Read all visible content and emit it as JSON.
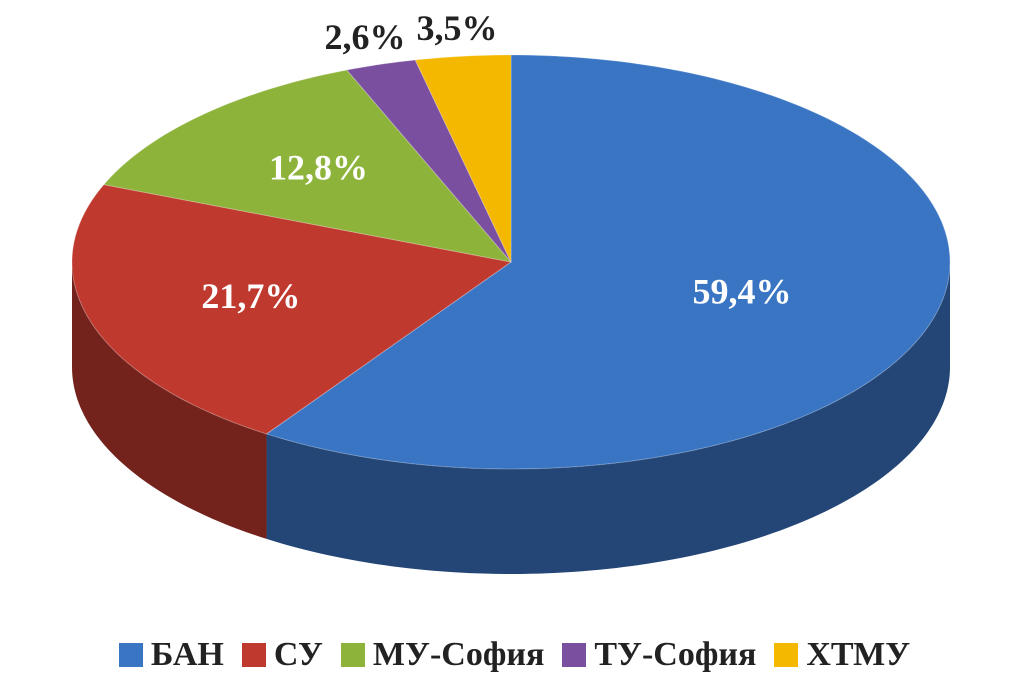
{
  "chart_data": {
    "type": "pie",
    "categories": [
      "БАН",
      "СУ",
      "МУ-София",
      "ТУ-София",
      "ХТМУ"
    ],
    "values": [
      59.4,
      21.7,
      12.8,
      2.6,
      3.5
    ],
    "value_labels": [
      "59,4%",
      "21,7%",
      "12,8%",
      "2,6%",
      "3,5%"
    ],
    "colors": [
      "#3a75c4",
      "#c0392f",
      "#8db33a",
      "#7a4fa0",
      "#f5b800"
    ]
  }
}
